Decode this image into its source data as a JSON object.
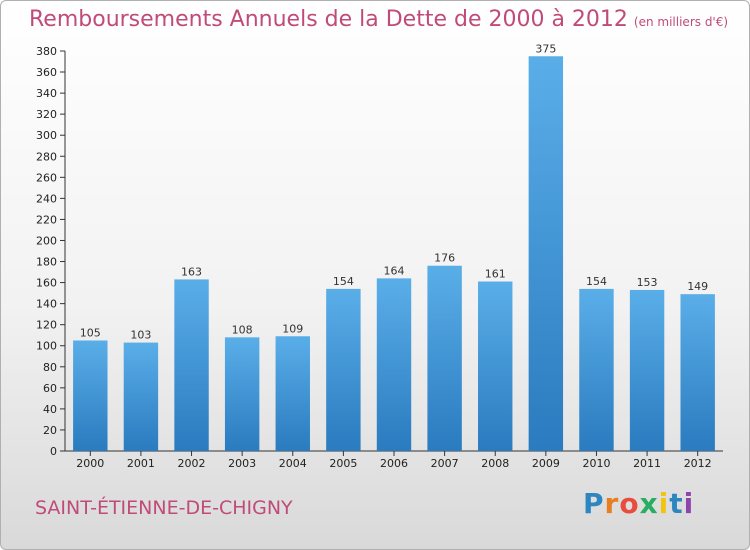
{
  "header": {
    "title": "Remboursements Annuels de la Dette de 2000 à 2012",
    "unit": "(en milliers d'€)"
  },
  "footer": {
    "place": "SAINT-ÉTIENNE-DE-CHIGNY",
    "brand": [
      "P",
      "r",
      "o",
      "x",
      "i",
      "t",
      "i"
    ],
    "brand_colors": [
      "#2e86c1",
      "#e67e22",
      "#e74c3c",
      "#27ae60",
      "#f1c40f",
      "#2e86c1",
      "#8e44ad"
    ]
  },
  "chart_data": {
    "type": "bar",
    "categories": [
      "2000",
      "2001",
      "2002",
      "2003",
      "2004",
      "2005",
      "2006",
      "2007",
      "2008",
      "2009",
      "2010",
      "2011",
      "2012"
    ],
    "values": [
      105,
      103,
      163,
      108,
      109,
      154,
      164,
      176,
      161,
      375,
      154,
      153,
      149
    ],
    "ylim": [
      0,
      380
    ],
    "yticks": [
      0,
      20,
      40,
      60,
      80,
      100,
      120,
      140,
      160,
      180,
      200,
      220,
      240,
      260,
      280,
      300,
      320,
      340,
      360,
      380
    ],
    "grid": false,
    "bar_color_top": "#5aaee8",
    "bar_color_bottom": "#2a7bbf"
  }
}
